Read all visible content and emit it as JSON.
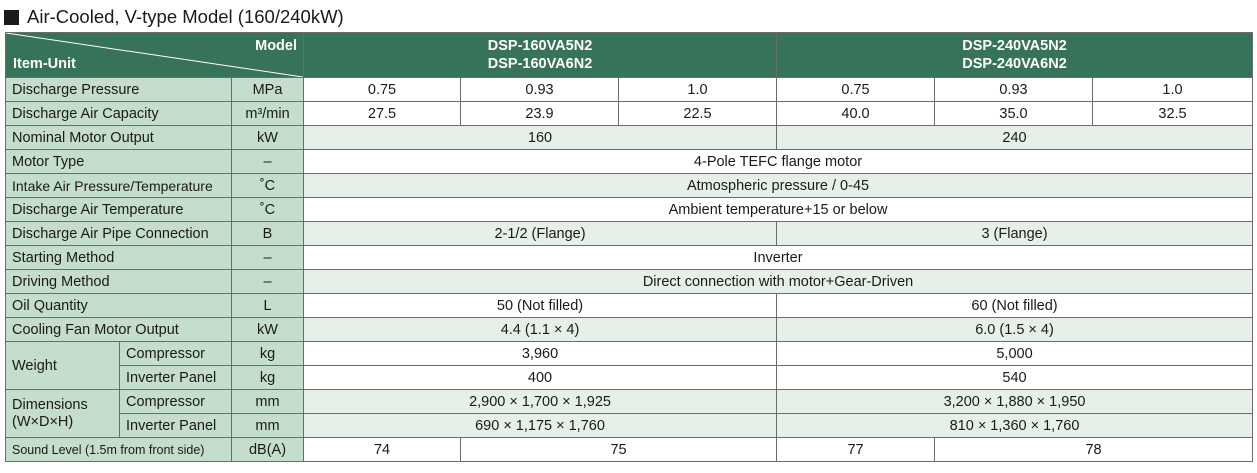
{
  "title": "Air-Cooled, V-type Model (160/240kW)",
  "header": {
    "model_label": "Model",
    "item_label": "Item-Unit",
    "model_a_line1": "DSP-160VA5N2",
    "model_a_line2": "DSP-160VA6N2",
    "model_b_line1": "DSP-240VA5N2",
    "model_b_line2": "DSP-240VA6N2"
  },
  "rows": {
    "discharge_pressure": {
      "label": "Discharge Pressure",
      "unit": "MPa",
      "values": [
        "0.75",
        "0.93",
        "1.0",
        "0.75",
        "0.93",
        "1.0"
      ]
    },
    "discharge_air_capacity": {
      "label": "Discharge Air Capacity",
      "unit": "m³/min",
      "values": [
        "27.5",
        "23.9",
        "22.5",
        "40.0",
        "35.0",
        "32.5"
      ]
    },
    "nominal_motor_output": {
      "label": "Nominal Motor Output",
      "unit": "kW",
      "a": "160",
      "b": "240"
    },
    "motor_type": {
      "label": "Motor Type",
      "unit": "–",
      "all": "4-Pole TEFC flange motor"
    },
    "intake_air": {
      "label": "Intake Air Pressure/Temperature",
      "unit": "˚C",
      "all": "Atmospheric pressure / 0-45"
    },
    "discharge_air_temp": {
      "label": "Discharge Air Temperature",
      "unit": "˚C",
      "all": "Ambient temperature+15 or below"
    },
    "pipe_connection": {
      "label": "Discharge Air Pipe Connection",
      "unit": "B",
      "a": "2-1/2 (Flange)",
      "b": "3 (Flange)"
    },
    "starting_method": {
      "label": "Starting Method",
      "unit": "–",
      "all": "Inverter"
    },
    "driving_method": {
      "label": "Driving Method",
      "unit": "–",
      "all": "Direct connection with motor+Gear-Driven"
    },
    "oil_quantity": {
      "label": "Oil Quantity",
      "unit": "L",
      "a": "50 (Not filled)",
      "b": "60 (Not filled)"
    },
    "cooling_fan": {
      "label": "Cooling Fan Motor Output",
      "unit": "kW",
      "a": "4.4 (1.1 × 4)",
      "b": "6.0 (1.5 × 4)"
    },
    "weight": {
      "label": "Weight",
      "compressor": {
        "label": "Compressor",
        "unit": "kg",
        "a": "3,960",
        "b": "5,000"
      },
      "inverter": {
        "label": "Inverter Panel",
        "unit": "kg",
        "a": "400",
        "b": "540"
      }
    },
    "dimensions": {
      "label_line1": "Dimensions",
      "label_line2": "(W×D×H)",
      "compressor": {
        "label": "Compressor",
        "unit": "mm",
        "a": "2,900 × 1,700 × 1,925",
        "b": "3,200 × 1,880 × 1,950"
      },
      "inverter": {
        "label": "Inverter Panel",
        "unit": "mm",
        "a": "690 × 1,175 × 1,760",
        "b": "810 × 1,360 × 1,760"
      }
    },
    "sound_level": {
      "label": "Sound Level (1.5m from front side)",
      "unit": "dB(A)",
      "a1": "74",
      "a2": "75",
      "b1": "77",
      "b2": "78"
    }
  }
}
